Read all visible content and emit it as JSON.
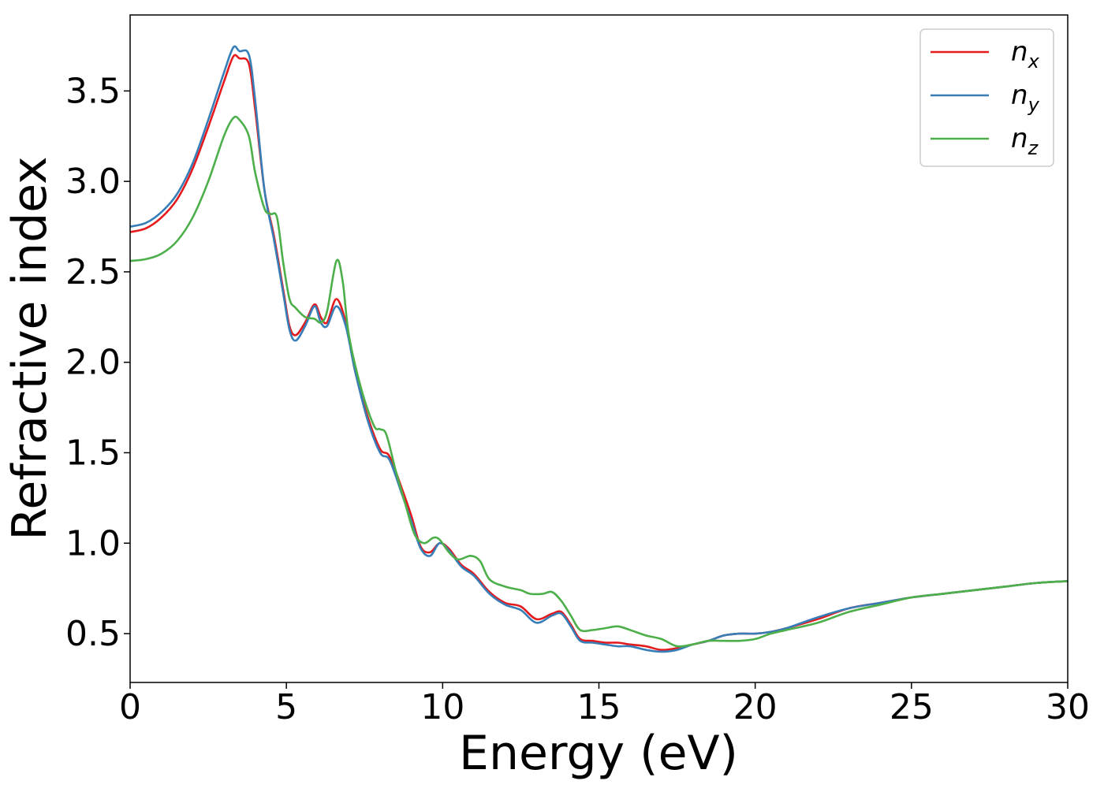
{
  "chart_data": {
    "type": "line",
    "title": "",
    "xlabel": "Energy (eV)",
    "ylabel": "Refractive index",
    "xlim": [
      0,
      30
    ],
    "ylim": [
      0.23,
      3.92
    ],
    "xticks": [
      0,
      5,
      10,
      15,
      20,
      25,
      30
    ],
    "xtick_labels": [
      "0",
      "5",
      "10",
      "15",
      "20",
      "25",
      "30"
    ],
    "yticks": [
      0.5,
      1.0,
      1.5,
      2.0,
      2.5,
      3.0,
      3.5
    ],
    "ytick_labels": [
      "0.5",
      "1.0",
      "1.5",
      "2.0",
      "2.5",
      "3.0",
      "3.5"
    ],
    "grid": false,
    "legend_position": "top-right",
    "series": [
      {
        "name": "n_x",
        "label_main": "n",
        "label_sub": "x",
        "color": "#e41a1c",
        "x": [
          0,
          0.5,
          1,
          1.5,
          2,
          2.5,
          3,
          3.3,
          3.5,
          3.8,
          4.0,
          4.3,
          4.6,
          4.9,
          5.1,
          5.3,
          5.6,
          5.9,
          6.1,
          6.3,
          6.6,
          6.9,
          7.2,
          7.6,
          8.0,
          8.3,
          8.7,
          9.0,
          9.3,
          9.6,
          9.9,
          10.2,
          10.6,
          11.0,
          11.5,
          12.0,
          12.5,
          13.0,
          13.5,
          13.8,
          14.1,
          14.4,
          14.8,
          15.2,
          15.6,
          16.0,
          16.5,
          17.0,
          17.5,
          18.0,
          18.5,
          19.0,
          19.5,
          20.0,
          20.5,
          21.0,
          22.0,
          23.0,
          24.0,
          25.0,
          26.0,
          27.0,
          28.0,
          29.0,
          30.0
        ],
        "y": [
          2.72,
          2.74,
          2.8,
          2.9,
          3.07,
          3.3,
          3.55,
          3.69,
          3.68,
          3.65,
          3.4,
          2.95,
          2.7,
          2.4,
          2.2,
          2.15,
          2.22,
          2.32,
          2.25,
          2.22,
          2.35,
          2.22,
          1.95,
          1.7,
          1.52,
          1.48,
          1.3,
          1.15,
          0.98,
          0.95,
          1.0,
          0.97,
          0.88,
          0.83,
          0.73,
          0.67,
          0.65,
          0.58,
          0.61,
          0.62,
          0.55,
          0.47,
          0.46,
          0.45,
          0.45,
          0.44,
          0.43,
          0.41,
          0.42,
          0.44,
          0.46,
          0.49,
          0.5,
          0.5,
          0.51,
          0.53,
          0.58,
          0.64,
          0.67,
          0.7,
          0.72,
          0.74,
          0.76,
          0.78,
          0.79
        ]
      },
      {
        "name": "n_y",
        "label_main": "n",
        "label_sub": "y",
        "color": "#377eb8",
        "x": [
          0,
          0.5,
          1,
          1.5,
          2,
          2.5,
          3,
          3.3,
          3.5,
          3.8,
          4.0,
          4.3,
          4.6,
          4.9,
          5.1,
          5.3,
          5.6,
          5.9,
          6.1,
          6.3,
          6.6,
          6.9,
          7.2,
          7.6,
          8.0,
          8.3,
          8.7,
          9.0,
          9.3,
          9.6,
          9.9,
          10.2,
          10.6,
          11.0,
          11.5,
          12.0,
          12.5,
          13.0,
          13.5,
          13.8,
          14.1,
          14.4,
          14.8,
          15.2,
          15.6,
          16.0,
          16.5,
          17.0,
          17.5,
          18.0,
          18.5,
          19.0,
          19.5,
          20.0,
          20.5,
          21.0,
          22.0,
          23.0,
          24.0,
          25.0,
          26.0,
          27.0,
          28.0,
          29.0,
          30.0
        ],
        "y": [
          2.75,
          2.77,
          2.83,
          2.93,
          3.1,
          3.34,
          3.6,
          3.74,
          3.72,
          3.7,
          3.45,
          2.95,
          2.68,
          2.38,
          2.18,
          2.12,
          2.2,
          2.31,
          2.22,
          2.2,
          2.31,
          2.2,
          1.95,
          1.68,
          1.5,
          1.46,
          1.27,
          1.12,
          0.97,
          0.93,
          1.0,
          0.96,
          0.87,
          0.82,
          0.72,
          0.66,
          0.63,
          0.56,
          0.6,
          0.61,
          0.54,
          0.46,
          0.45,
          0.44,
          0.43,
          0.43,
          0.41,
          0.4,
          0.41,
          0.44,
          0.46,
          0.49,
          0.5,
          0.5,
          0.51,
          0.53,
          0.59,
          0.64,
          0.67,
          0.7,
          0.72,
          0.74,
          0.76,
          0.78,
          0.79
        ]
      },
      {
        "name": "n_z",
        "label_main": "n",
        "label_sub": "z",
        "color": "#4daf4a",
        "x": [
          0,
          0.5,
          1,
          1.5,
          2,
          2.5,
          3,
          3.3,
          3.5,
          3.8,
          4.0,
          4.3,
          4.5,
          4.7,
          4.9,
          5.1,
          5.3,
          5.6,
          5.9,
          6.1,
          6.3,
          6.6,
          6.8,
          7.0,
          7.4,
          7.8,
          8.0,
          8.2,
          8.5,
          8.8,
          9.1,
          9.4,
          9.7,
          9.9,
          10.2,
          10.5,
          10.9,
          11.2,
          11.5,
          12.0,
          12.5,
          12.8,
          13.2,
          13.5,
          13.8,
          14.1,
          14.4,
          14.8,
          15.2,
          15.6,
          16.0,
          16.5,
          17.0,
          17.5,
          18.0,
          18.5,
          19.0,
          19.5,
          20.0,
          20.5,
          21.0,
          22.0,
          23.0,
          24.0,
          25.0,
          26.0,
          27.0,
          28.0,
          29.0,
          30.0
        ],
        "y": [
          2.56,
          2.57,
          2.6,
          2.67,
          2.8,
          3.0,
          3.25,
          3.35,
          3.34,
          3.25,
          3.05,
          2.85,
          2.82,
          2.8,
          2.55,
          2.35,
          2.3,
          2.25,
          2.24,
          2.22,
          2.28,
          2.56,
          2.45,
          2.15,
          1.85,
          1.65,
          1.63,
          1.6,
          1.4,
          1.22,
          1.05,
          1.0,
          1.03,
          1.02,
          0.95,
          0.91,
          0.93,
          0.9,
          0.8,
          0.76,
          0.74,
          0.72,
          0.72,
          0.73,
          0.68,
          0.6,
          0.52,
          0.52,
          0.53,
          0.54,
          0.52,
          0.49,
          0.47,
          0.43,
          0.44,
          0.46,
          0.46,
          0.46,
          0.47,
          0.5,
          0.52,
          0.56,
          0.62,
          0.66,
          0.7,
          0.72,
          0.74,
          0.76,
          0.78,
          0.79
        ]
      }
    ]
  }
}
